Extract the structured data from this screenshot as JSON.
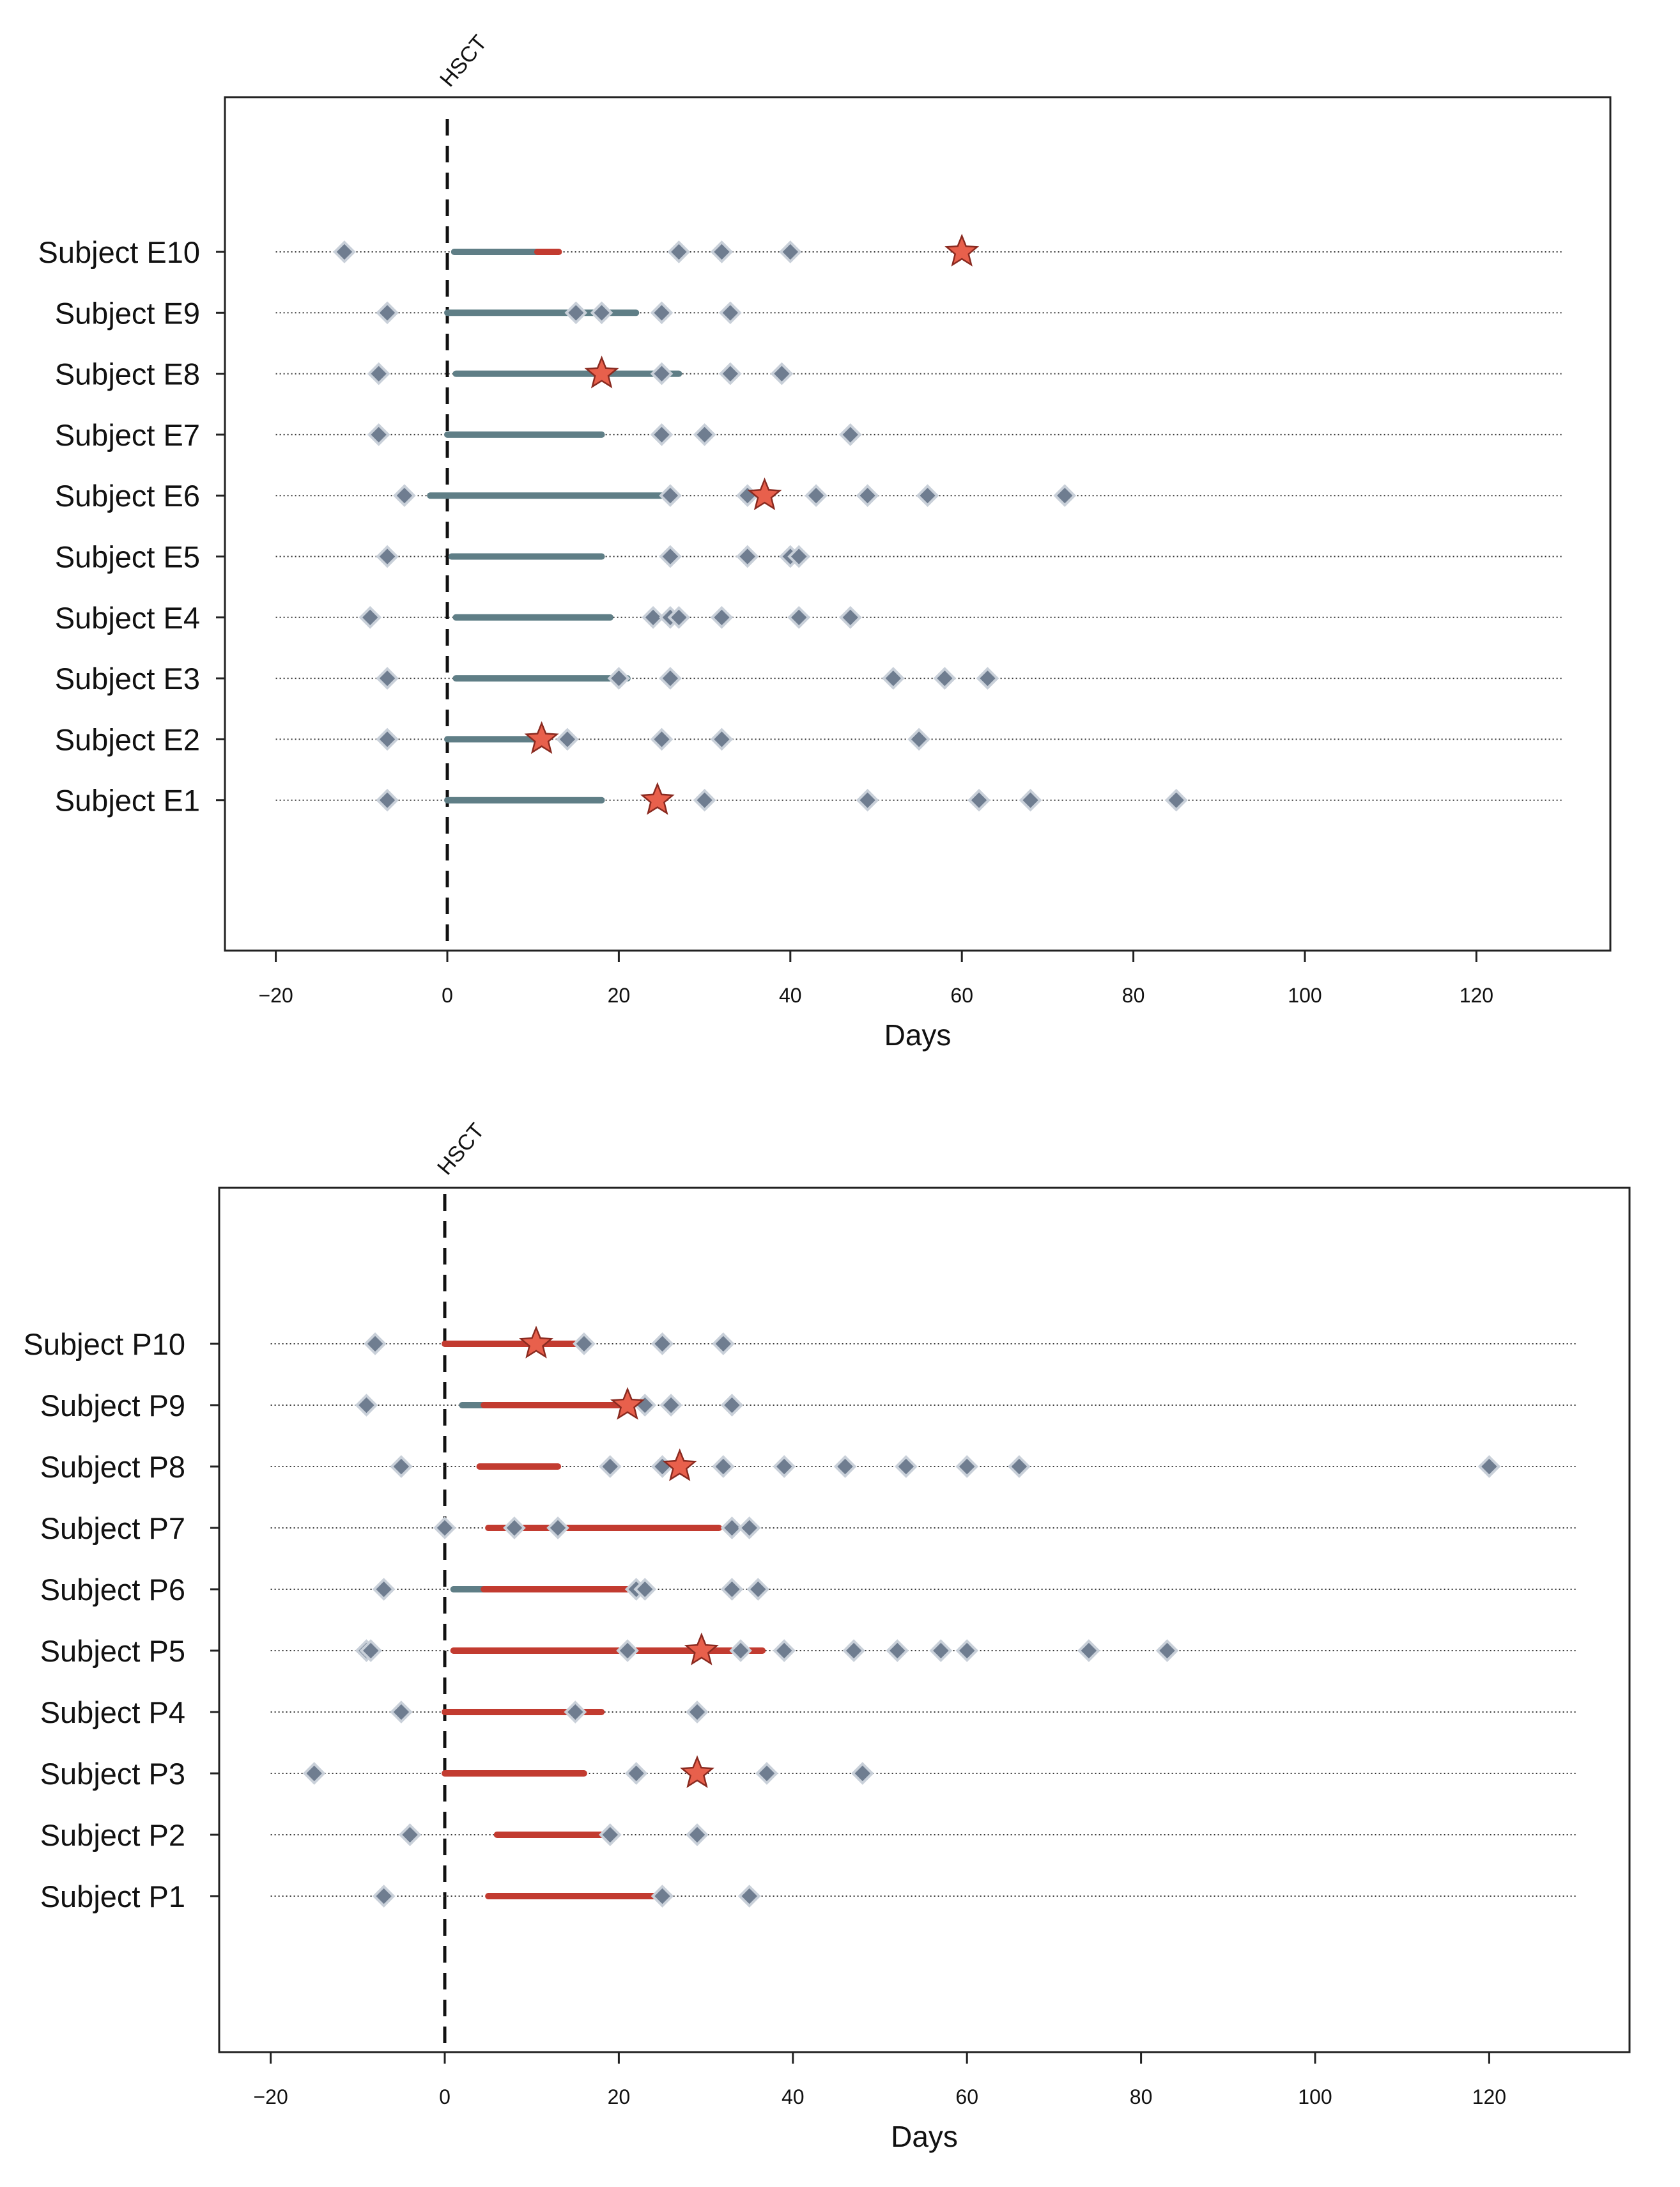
{
  "chart_data": [
    {
      "type": "scatter",
      "panel": "top",
      "xlabel": "Days",
      "xlim": [
        -26,
        136
      ],
      "xticks": [
        -20,
        0,
        20,
        40,
        60,
        80,
        100,
        120
      ],
      "xtick_labels": [
        "−20",
        "0",
        "20",
        "40",
        "60",
        "80",
        "100",
        "120"
      ],
      "dotted_range": [
        -20,
        130
      ],
      "hsct_day": 0,
      "hsct_label": "HSCT",
      "colors": {
        "teal": "#5f7e86",
        "red": "#c23b30",
        "star": "#e8604c",
        "diamond": "#6f7d90"
      },
      "subjects": [
        {
          "label": "Subject E10",
          "segments": [
            {
              "from": 0.8,
              "to": 10.5,
              "color": "teal"
            },
            {
              "from": 10.5,
              "to": 13,
              "color": "red"
            }
          ],
          "diamonds": [
            -12,
            27,
            32,
            40
          ],
          "stars": [
            60
          ]
        },
        {
          "label": "Subject E9",
          "segments": [
            {
              "from": 0,
              "to": 22,
              "color": "teal"
            }
          ],
          "diamonds": [
            -7,
            15,
            18,
            25,
            33
          ],
          "stars": []
        },
        {
          "label": "Subject E8",
          "segments": [
            {
              "from": 1,
              "to": 27,
              "color": "teal"
            }
          ],
          "diamonds": [
            -8,
            25,
            33,
            39
          ],
          "stars": [
            18
          ]
        },
        {
          "label": "Subject E7",
          "segments": [
            {
              "from": 0,
              "to": 18,
              "color": "teal"
            }
          ],
          "diamonds": [
            -8,
            25,
            30,
            47
          ],
          "stars": []
        },
        {
          "label": "Subject E6",
          "segments": [
            {
              "from": -2,
              "to": 26,
              "color": "teal"
            }
          ],
          "diamonds": [
            -5,
            26,
            35,
            43,
            49,
            56,
            72
          ],
          "stars": [
            37
          ]
        },
        {
          "label": "Subject E5",
          "segments": [
            {
              "from": 0.5,
              "to": 18,
              "color": "teal"
            }
          ],
          "diamonds": [
            -7,
            26,
            35,
            40,
            41
          ],
          "stars": []
        },
        {
          "label": "Subject E4",
          "segments": [
            {
              "from": 1,
              "to": 19,
              "color": "teal"
            }
          ],
          "diamonds": [
            -9,
            24,
            26,
            27,
            32,
            41,
            47
          ],
          "stars": []
        },
        {
          "label": "Subject E3",
          "segments": [
            {
              "from": 1,
              "to": 21,
              "color": "teal"
            }
          ],
          "diamonds": [
            -7,
            20,
            26,
            52,
            58,
            63
          ],
          "stars": []
        },
        {
          "label": "Subject E2",
          "segments": [
            {
              "from": 0,
              "to": 11,
              "color": "teal"
            }
          ],
          "diamonds": [
            -7,
            14,
            25,
            32,
            55
          ],
          "stars": [
            11
          ]
        },
        {
          "label": "Subject E1",
          "segments": [
            {
              "from": 0,
              "to": 18,
              "color": "teal"
            }
          ],
          "diamonds": [
            -7,
            30,
            49,
            62,
            68,
            85
          ],
          "stars": [
            24.5
          ]
        }
      ]
    },
    {
      "type": "scatter",
      "panel": "bottom",
      "xlabel": "Days",
      "xlim": [
        -26,
        136
      ],
      "xticks": [
        -20,
        0,
        20,
        40,
        60,
        80,
        100,
        120
      ],
      "xtick_labels": [
        "−20",
        "0",
        "20",
        "40",
        "60",
        "80",
        "100",
        "120"
      ],
      "dotted_range": [
        -20,
        130
      ],
      "hsct_day": 0,
      "hsct_label": "HSCT",
      "colors": {
        "teal": "#5f7e86",
        "red": "#c23b30",
        "star": "#e8604c",
        "diamond": "#6f7d90"
      },
      "subjects": [
        {
          "label": "Subject P10",
          "segments": [
            {
              "from": 0,
              "to": 16,
              "color": "red"
            }
          ],
          "diamonds": [
            -8,
            16,
            25,
            32
          ],
          "stars": [
            10.5
          ]
        },
        {
          "label": "Subject P9",
          "segments": [
            {
              "from": 2,
              "to": 4.5,
              "color": "teal"
            },
            {
              "from": 4.5,
              "to": 21,
              "color": "red"
            }
          ],
          "diamonds": [
            -9,
            23,
            26,
            33
          ],
          "stars": [
            21
          ]
        },
        {
          "label": "Subject P8",
          "segments": [
            {
              "from": 4,
              "to": 13,
              "color": "red"
            }
          ],
          "diamonds": [
            -5,
            19,
            25,
            32,
            39,
            46,
            53,
            60,
            66,
            120
          ],
          "stars": [
            27
          ]
        },
        {
          "label": "Subject P7",
          "segments": [
            {
              "from": 5,
              "to": 31.5,
              "color": "red"
            }
          ],
          "diamonds": [
            0,
            8,
            13,
            33,
            35
          ],
          "stars": []
        },
        {
          "label": "Subject P6",
          "segments": [
            {
              "from": 1,
              "to": 4.5,
              "color": "teal"
            },
            {
              "from": 4.5,
              "to": 22,
              "color": "red"
            }
          ],
          "diamonds": [
            -7,
            22,
            23,
            33,
            36
          ],
          "stars": []
        },
        {
          "label": "Subject P5",
          "segments": [
            {
              "from": 1,
              "to": 36.5,
              "color": "red"
            }
          ],
          "diamonds": [
            -9,
            -8.5,
            21,
            34,
            39,
            47,
            52,
            57,
            60,
            74,
            83
          ],
          "stars": [
            29.5
          ]
        },
        {
          "label": "Subject P4",
          "segments": [
            {
              "from": 0,
              "to": 18,
              "color": "red"
            }
          ],
          "diamonds": [
            -5,
            15,
            29
          ],
          "stars": []
        },
        {
          "label": "Subject P3",
          "segments": [
            {
              "from": 0,
              "to": 16,
              "color": "red"
            }
          ],
          "diamonds": [
            -15,
            22,
            37,
            48
          ],
          "stars": [
            29
          ]
        },
        {
          "label": "Subject P2",
          "segments": [
            {
              "from": 6,
              "to": 19,
              "color": "red"
            }
          ],
          "diamonds": [
            -4,
            19,
            29
          ],
          "stars": []
        },
        {
          "label": "Subject P1",
          "segments": [
            {
              "from": 5,
              "to": 25,
              "color": "red"
            }
          ],
          "diamonds": [
            -7,
            25,
            35
          ],
          "stars": []
        }
      ]
    }
  ]
}
